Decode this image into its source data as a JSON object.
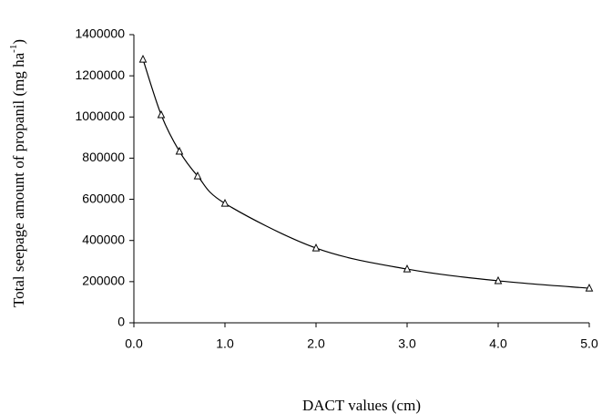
{
  "chart_data": {
    "type": "scatter",
    "x_label": "DACT values (cm)",
    "y_label": {
      "text": "Total seepage amount of propanil (mg ha",
      "superscript": "-1",
      "suffix": ")"
    },
    "x": [
      0.1,
      0.3,
      0.5,
      0.7,
      1.0,
      2.0,
      3.0,
      4.0,
      5.0
    ],
    "series": [
      {
        "color": "#000000",
        "marker": "triangle",
        "smooth": true,
        "values": [
          1280000,
          1010000,
          833000,
          713000,
          580000,
          363000,
          261000,
          204000,
          168000
        ]
      }
    ],
    "xlim": [
      0,
      5
    ],
    "ylim": [
      0,
      1400000
    ],
    "xticks": [
      {
        "value": 0,
        "label": "0.0"
      },
      {
        "value": 1,
        "label": "1.0"
      },
      {
        "value": 2,
        "label": "2.0"
      },
      {
        "value": 3,
        "label": "3.0"
      },
      {
        "value": 4,
        "label": "4.0"
      },
      {
        "value": 5,
        "label": "5.0"
      }
    ],
    "yticks": [
      0,
      200000,
      400000,
      600000,
      800000,
      1000000,
      1200000,
      1400000
    ],
    "grid": false
  }
}
